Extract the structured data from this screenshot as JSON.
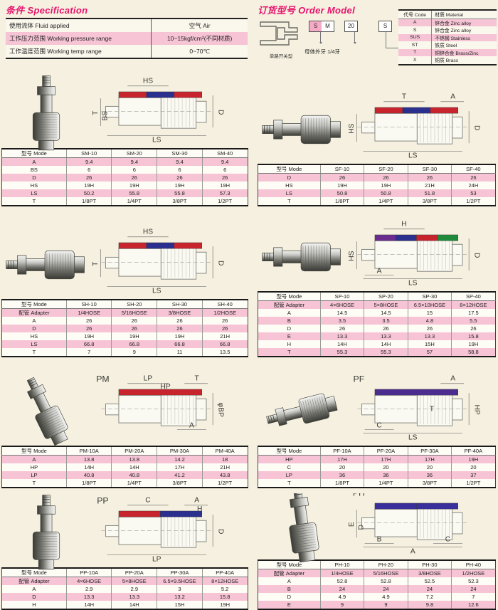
{
  "spec": {
    "title": "条件 Specification",
    "rows": [
      {
        "label": "使用流体 Fluid applied",
        "value": "空气 Air",
        "pink": false
      },
      {
        "label": "工作压力范围 Working pressure range",
        "value": "10~15kgf/cm²(不同材质)",
        "pink": true
      },
      {
        "label": "工作温度范围 Working temp range",
        "value": "0~70℃",
        "pink": false
      }
    ]
  },
  "order": {
    "title": "订货型号 Order Model",
    "boxes": [
      "S",
      "M",
      "20",
      "S"
    ],
    "shape_caption": "单路开关型",
    "note": "母体外牙 1/4牙",
    "code_table": {
      "headers": [
        "代号 Code",
        "材质 Material"
      ],
      "rows": [
        {
          "code": "A",
          "material": "锌合金 Zinc alloy",
          "pink": true
        },
        {
          "code": "S",
          "material": "锌合金 Zinc alloy",
          "pink": false
        },
        {
          "code": "SUS",
          "material": "不锈钢 Stainless",
          "pink": true
        },
        {
          "code": "ST",
          "material": "铁质 Steel",
          "pink": false
        },
        {
          "code": "T",
          "material": "铜锌合金 Brass/Zinc",
          "pink": true
        },
        {
          "code": "X",
          "material": "铜质 Brass",
          "pink": false
        }
      ]
    }
  },
  "colors": {
    "accent_pink_row": "#f6c4d5",
    "title_magenta": "#e8136e",
    "band_red": "#c8242e",
    "band_blue": "#2b2f8e",
    "band_purple": "#6a2d8e",
    "band_green": "#1f8a3c"
  },
  "sections": [
    {
      "series": "SM",
      "diagram": {
        "labels": [
          {
            "t": "HS",
            "p": "top"
          },
          {
            "t": "T",
            "p": "left"
          },
          {
            "t": "BS",
            "p": "left2"
          },
          {
            "t": "D",
            "p": "right"
          },
          {
            "t": "LS",
            "p": "bottom"
          }
        ],
        "bands": [
          "#c8242e",
          "#2b2f8e",
          "#c8242e"
        ]
      },
      "table": {
        "header": [
          "型号 Mode",
          "SM-10",
          "SM-20",
          "SM-30",
          "SM-40"
        ],
        "rows": [
          [
            "A",
            "9.4",
            "9.4",
            "9.4",
            "9.4"
          ],
          [
            "BS",
            "6",
            "6",
            "6",
            "6"
          ],
          [
            "D",
            "26",
            "26",
            "26",
            "26"
          ],
          [
            "HS",
            "19H",
            "19H",
            "19H",
            "19H"
          ],
          [
            "LS",
            "50.2",
            "55.8",
            "55.8",
            "57.3"
          ],
          [
            "T",
            "1/8PT",
            "1/4PT",
            "3/8PT",
            "1/2PT"
          ]
        ]
      }
    },
    {
      "series": "SF",
      "diagram": {
        "labels": [
          {
            "t": "T",
            "p": "top"
          },
          {
            "t": "A",
            "p": "topright"
          },
          {
            "t": "HS",
            "p": "left"
          },
          {
            "t": "D",
            "p": "right"
          },
          {
            "t": "LS",
            "p": "bottom"
          }
        ],
        "bands": [
          "#c8242e",
          "#2b2f8e",
          "#c8242e"
        ]
      },
      "table": {
        "header": [
          "型号 Mode",
          "SF-10",
          "SF-20",
          "SF-30",
          "SF-40"
        ],
        "rows": [
          [
            "D",
            "26",
            "26",
            "26",
            "26"
          ],
          [
            "HS",
            "19H",
            "19H",
            "21H",
            "24H"
          ],
          [
            "LS",
            "50.8",
            "50.8",
            "51.8",
            "53"
          ],
          [
            "T",
            "1/8PT",
            "1/4PT",
            "3/8PT",
            "1/2PT"
          ]
        ]
      }
    },
    {
      "series": "SH",
      "diagram": {
        "labels": [
          {
            "t": "HS",
            "p": "top"
          },
          {
            "t": "T",
            "p": "left"
          },
          {
            "t": "D",
            "p": "right"
          },
          {
            "t": "LS",
            "p": "bottom"
          }
        ],
        "bands": [
          "#c8242e",
          "#2b2f8e",
          "#c8242e"
        ]
      },
      "table": {
        "header": [
          "型号 Mode",
          "SH-10",
          "SH-20",
          "SH-30",
          "SH-40"
        ],
        "rows": [
          [
            "配管 Adapter",
            "1/4HOSE",
            "5/16HOSE",
            "3/8HOSE",
            "1/2HOSE"
          ],
          [
            "A",
            "26",
            "26",
            "26",
            "26"
          ],
          [
            "D",
            "26",
            "26",
            "26",
            "26"
          ],
          [
            "HS",
            "19H",
            "19H",
            "19H",
            "21H"
          ],
          [
            "LS",
            "66.8",
            "66.8",
            "66.8",
            "66.8"
          ],
          [
            "T",
            "7",
            "9",
            "11",
            "13.5"
          ]
        ]
      }
    },
    {
      "series": "SP",
      "diagram": {
        "labels": [
          {
            "t": "H",
            "p": "top"
          },
          {
            "t": "HS",
            "p": "left"
          },
          {
            "t": "D",
            "p": "right"
          },
          {
            "t": "A",
            "p": "bottomleft"
          },
          {
            "t": "LS",
            "p": "bottom"
          }
        ],
        "bands": [
          "#6a2d8e",
          "#2b2f8e",
          "#c8242e",
          "#1f8a3c"
        ]
      },
      "table": {
        "header": [
          "型号 Mode",
          "SP-10",
          "SP-20",
          "SP-30",
          "SP-40"
        ],
        "rows": [
          [
            "配管 Adapter",
            "4×6HOSE",
            "5×8HOSE",
            "6.5×10HOSE",
            "8×12HOSE"
          ],
          [
            "A",
            "14.5",
            "14.5",
            "15",
            "17.5"
          ],
          [
            "B",
            "3.5",
            "3.5",
            "4.8",
            "5.5"
          ],
          [
            "D",
            "26",
            "26",
            "26",
            "26"
          ],
          [
            "E",
            "13.3",
            "13.3",
            "13.3",
            "15.8"
          ],
          [
            "H",
            "14H",
            "14H",
            "15H",
            "19H"
          ],
          [
            "T",
            "55.3",
            "55.3",
            "57",
            "58.8"
          ]
        ]
      }
    },
    {
      "series": "PM",
      "diagram": {
        "labels": [
          {
            "t": "PM",
            "p": "tl"
          },
          {
            "t": "LP",
            "p": "top"
          },
          {
            "t": "HP",
            "p": "top2"
          },
          {
            "t": "T",
            "p": "topright"
          },
          {
            "t": "φBP",
            "p": "right"
          },
          {
            "t": "A",
            "p": "bottomright"
          }
        ],
        "bands": [
          "#c8242e"
        ]
      },
      "table": {
        "header": [
          "型号 Mode",
          "PM-10A",
          "PM-20A",
          "PM-30A",
          "PM-40A"
        ],
        "rows": [
          [
            "A",
            "13.8",
            "13.8",
            "14.2",
            "18"
          ],
          [
            "HP",
            "14H",
            "14H",
            "17H",
            "21H"
          ],
          [
            "LP",
            "40.8",
            "40.8",
            "41.2",
            "43.8"
          ],
          [
            "T",
            "1/8PT",
            "1/4PT",
            "3/8PT",
            "1/2PT"
          ]
        ]
      }
    },
    {
      "series": "PF",
      "diagram": {
        "labels": [
          {
            "t": "PF",
            "p": "tl"
          },
          {
            "t": "A",
            "p": "topright"
          },
          {
            "t": "T",
            "p": "inner"
          },
          {
            "t": "HP",
            "p": "right"
          },
          {
            "t": "C",
            "p": "bottomleft"
          },
          {
            "t": "LS",
            "p": "bottom"
          }
        ],
        "bands": [
          "#4a2d8e"
        ]
      },
      "table": {
        "header": [
          "型号 Mode",
          "PF-10A",
          "PF-20A",
          "PF-30A",
          "PF-40A"
        ],
        "rows": [
          [
            "HP",
            "17H",
            "17H",
            "17H",
            "19H"
          ],
          [
            "C",
            "20",
            "20",
            "20",
            "20"
          ],
          [
            "LP",
            "36",
            "36",
            "36",
            "37"
          ],
          [
            "T",
            "1/8PT",
            "1/4PT",
            "3/8PT",
            "1/2PT"
          ]
        ]
      }
    },
    {
      "series": "PP",
      "diagram": {
        "labels": [
          {
            "t": "PP",
            "p": "tl"
          },
          {
            "t": "C",
            "p": "top"
          },
          {
            "t": "A",
            "p": "topright"
          },
          {
            "t": "H",
            "p": "tr2"
          },
          {
            "t": "D",
            "p": "right"
          },
          {
            "t": "LP",
            "p": "bottom"
          }
        ],
        "bands": [
          "#c8242e",
          "#2b2f8e"
        ]
      },
      "table": {
        "header": [
          "型号 Mode",
          "PP-10A",
          "PP-20A",
          "PP-30A",
          "PP-40A"
        ],
        "rows": [
          [
            "配管 Adapter",
            "4×6HOSE",
            "5×8HOSE",
            "6.5×9.5HOSE",
            "8×12HOSE"
          ],
          [
            "A",
            "2.9",
            "2.9",
            "3",
            "5.2"
          ],
          [
            "D",
            "13.3",
            "13.3",
            "13.2",
            "15.8"
          ],
          [
            "H",
            "14H",
            "14H",
            "15H",
            "19H"
          ]
        ]
      }
    },
    {
      "series": "PH",
      "diagram": {
        "labels": [
          {
            "t": "PH",
            "p": "tl"
          },
          {
            "t": "E",
            "p": "left"
          },
          {
            "t": "D",
            "p": "left2"
          },
          {
            "t": "B",
            "p": "bottomleft"
          },
          {
            "t": "C",
            "p": "bottomright"
          },
          {
            "t": "A",
            "p": "bottom"
          }
        ],
        "bands": [
          "#3a309c",
          "#3a309c"
        ]
      },
      "table": {
        "header": [
          "型号 Mode",
          "PH-10",
          "PH-20",
          "PH-30",
          "PH-40"
        ],
        "rows": [
          [
            "配管 Adapter",
            "1/4HOSE",
            "5/16HOSE",
            "3/8HOSE",
            "1/2HOSE"
          ],
          [
            "A",
            "52.8",
            "52.8",
            "52.5",
            "52.3"
          ],
          [
            "B",
            "24",
            "24",
            "24",
            "24"
          ],
          [
            "D",
            "4.9",
            "4.9",
            "7.2",
            "7"
          ],
          [
            "E",
            "9",
            "9",
            "9.8",
            "12.6"
          ]
        ]
      }
    }
  ]
}
